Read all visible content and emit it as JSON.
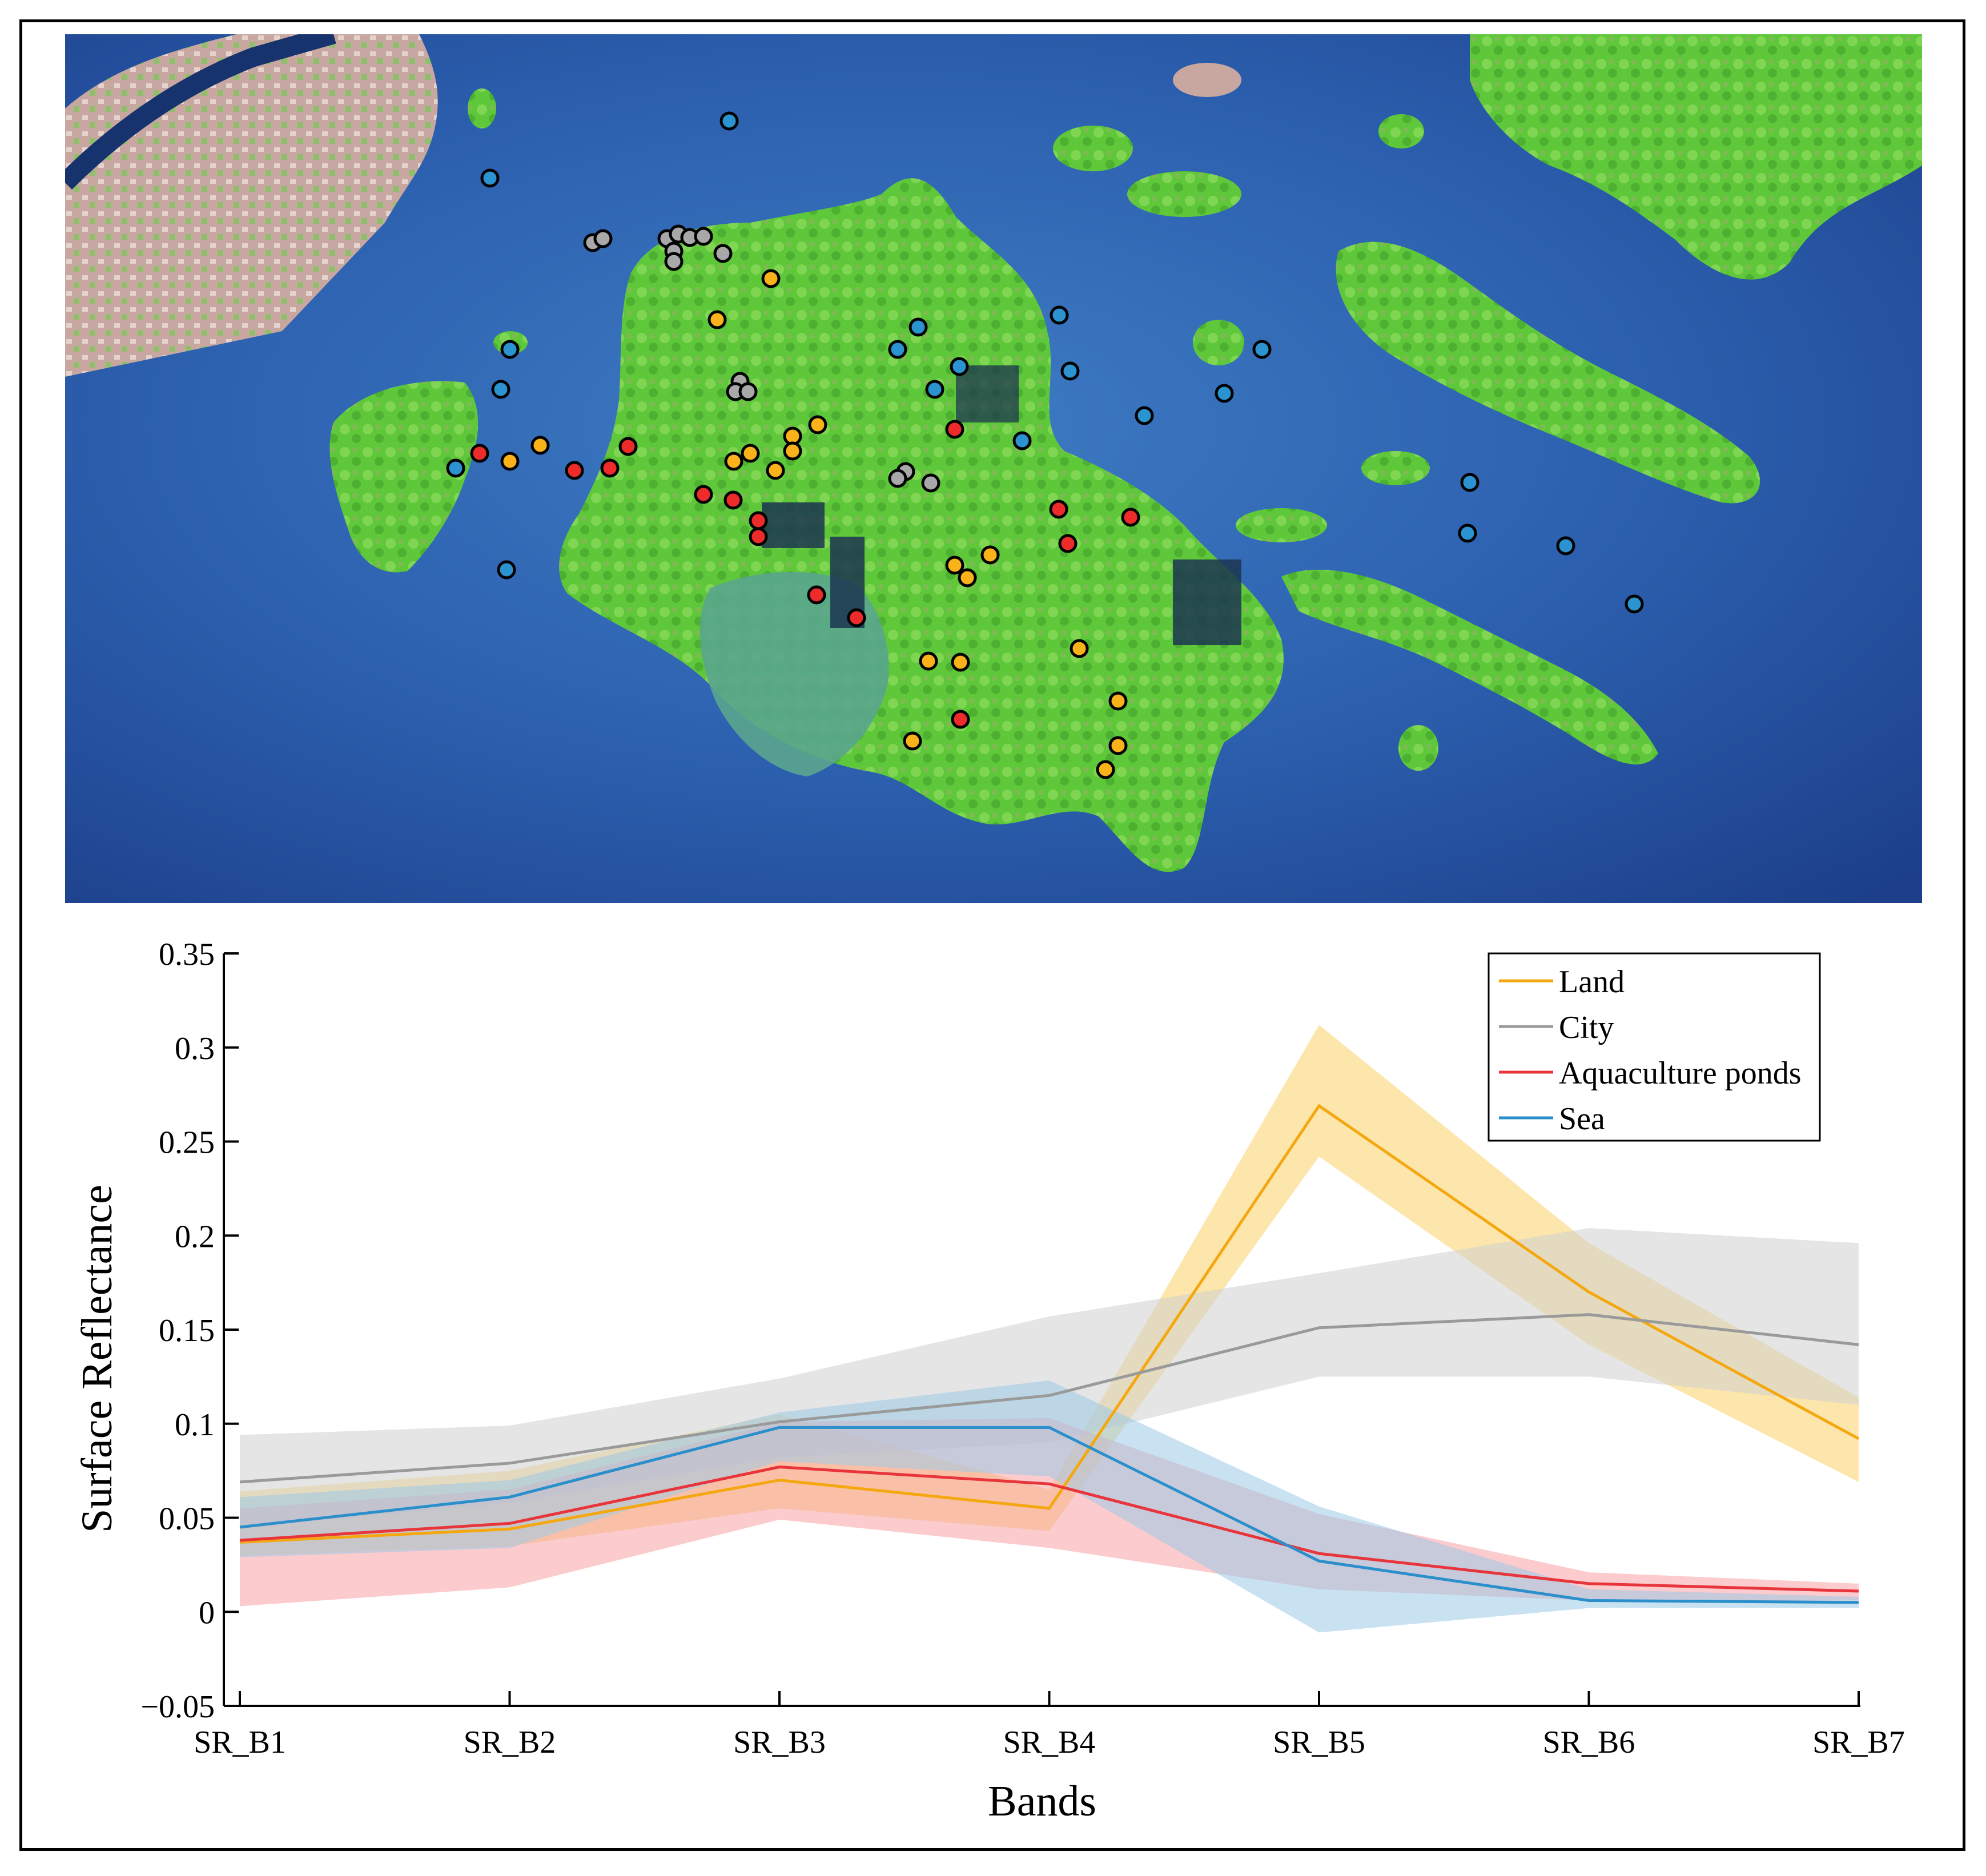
{
  "map": {
    "colors": {
      "sea_deep": "#1d3f8a",
      "sea_mid": "#2b5fae",
      "sea_light": "#4f8fd0",
      "land": "#5fc83a",
      "land_light": "#93e06a",
      "urban": "#c7a7a0",
      "tidal_flat": "#5aa58e"
    },
    "marker_colors": {
      "land": "#f9b21a",
      "city": "#a8a8a8",
      "aquaculture": "#ee2b2b",
      "sea": "#2a93d0"
    }
  },
  "chart_data": {
    "type": "line",
    "categories": [
      "SR_B1",
      "SR_B2",
      "SR_B3",
      "SR_B4",
      "SR_B5",
      "SR_B6",
      "SR_B7"
    ],
    "xlabel": "Bands",
    "ylabel": "Surface Reflectance",
    "ylim": [
      -0.05,
      0.35
    ],
    "yticks": [
      -0.05,
      0,
      0.05,
      0.1,
      0.15,
      0.2,
      0.25,
      0.3,
      0.35
    ],
    "ytick_labels": [
      "−0.05",
      "0",
      "0.05",
      "0.1",
      "0.15",
      "0.2",
      "0.25",
      "0.3",
      "0.35"
    ],
    "grid": false,
    "legend_position": "top-right",
    "series": [
      {
        "name": "Land",
        "color": "#f5a70f",
        "band_color": "#fbd267",
        "values": [
          0.037,
          0.044,
          0.07,
          0.055,
          0.269,
          0.17,
          0.092
        ],
        "upper": [
          0.064,
          0.075,
          0.105,
          0.065,
          0.312,
          0.196,
          0.114
        ],
        "lower": [
          0.03,
          0.035,
          0.055,
          0.043,
          0.242,
          0.142,
          0.069
        ]
      },
      {
        "name": "City",
        "color": "#9a9a9a",
        "band_color": "#cfcfcf",
        "values": [
          0.069,
          0.079,
          0.101,
          0.115,
          0.151,
          0.158,
          0.142
        ],
        "upper": [
          0.094,
          0.099,
          0.124,
          0.157,
          0.18,
          0.204,
          0.196
        ],
        "lower": [
          0.045,
          0.058,
          0.082,
          0.09,
          0.125,
          0.125,
          0.11
        ]
      },
      {
        "name": "Aquaculture ponds",
        "color": "#e8353b",
        "band_color": "#f7a0a4",
        "values": [
          0.038,
          0.047,
          0.077,
          0.068,
          0.031,
          0.015,
          0.011
        ],
        "upper": [
          0.055,
          0.065,
          0.101,
          0.103,
          0.052,
          0.021,
          0.015
        ],
        "lower": [
          0.003,
          0.013,
          0.049,
          0.034,
          0.012,
          0.006,
          0.006
        ]
      },
      {
        "name": "Sea",
        "color": "#2a8fcb",
        "band_color": "#9ccbe8",
        "values": [
          0.045,
          0.061,
          0.098,
          0.098,
          0.027,
          0.006,
          0.005
        ],
        "upper": [
          0.061,
          0.07,
          0.106,
          0.123,
          0.056,
          0.012,
          0.008
        ],
        "lower": [
          0.029,
          0.034,
          0.08,
          0.072,
          -0.011,
          0.002,
          0.002
        ]
      }
    ]
  }
}
